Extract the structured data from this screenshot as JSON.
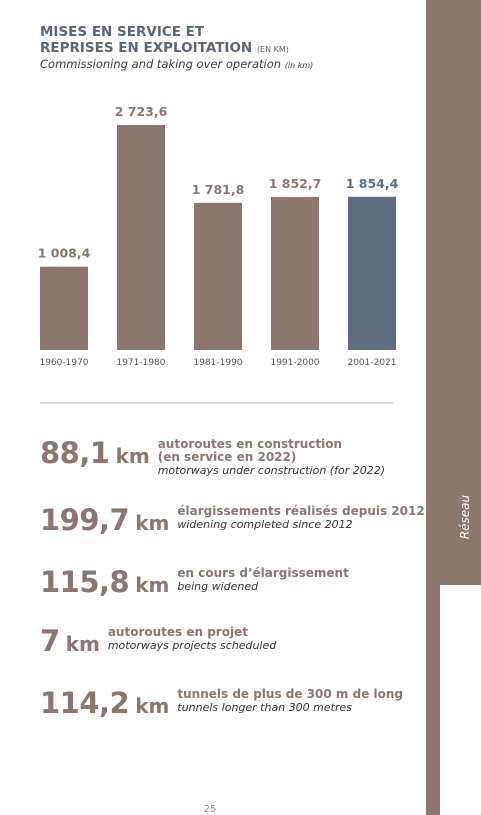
{
  "chart_data": {
    "type": "bar",
    "title": [
      "MISES EN SERVICE ET",
      "REPRISES EN EXPLOITATION"
    ],
    "title_unit": "(EN KM)",
    "subtitle": "Commissioning and taking over operation",
    "subtitle_unit": "(in km)",
    "categories": [
      "1960-1970",
      "1971-1980",
      "1981-1990",
      "1991-2000",
      "2001-2021"
    ],
    "values": [
      1008.4,
      2723.6,
      1781.8,
      1852.7,
      1854.4
    ],
    "value_labels": [
      "1 008,4",
      "2 723,6",
      "1 781,8",
      "1 852,7",
      "1 854,4"
    ],
    "colors": [
      "#8c766e",
      "#8c766e",
      "#8c766e",
      "#8c766e",
      "#5d6e80"
    ],
    "label_colors": [
      "#8c766e",
      "#8c766e",
      "#8c766e",
      "#8c766e",
      "#5d6e80"
    ]
  },
  "stats": [
    {
      "value": "88,1",
      "unit": "km",
      "fr": [
        "autoroutes en construction",
        "(en service en 2022)"
      ],
      "en": "motorways under construction (for 2022)"
    },
    {
      "value": "199,7",
      "unit": "km",
      "fr": [
        "élargissements réalisés depuis 2012"
      ],
      "en": "widening completed since 2012"
    },
    {
      "value": "115,8",
      "unit": "km",
      "fr": [
        "en cours d’élargissement"
      ],
      "en": "being widened"
    },
    {
      "value": "7",
      "unit": "km",
      "fr": [
        "autoroutes en projet"
      ],
      "en": "motorways projects scheduled"
    },
    {
      "value": "114,2",
      "unit": "km",
      "fr": [
        "tunnels de plus de 300 m de long"
      ],
      "en": "tunnels longer than 300 metres"
    }
  ],
  "side_label": "Réseau",
  "page_number": "25"
}
